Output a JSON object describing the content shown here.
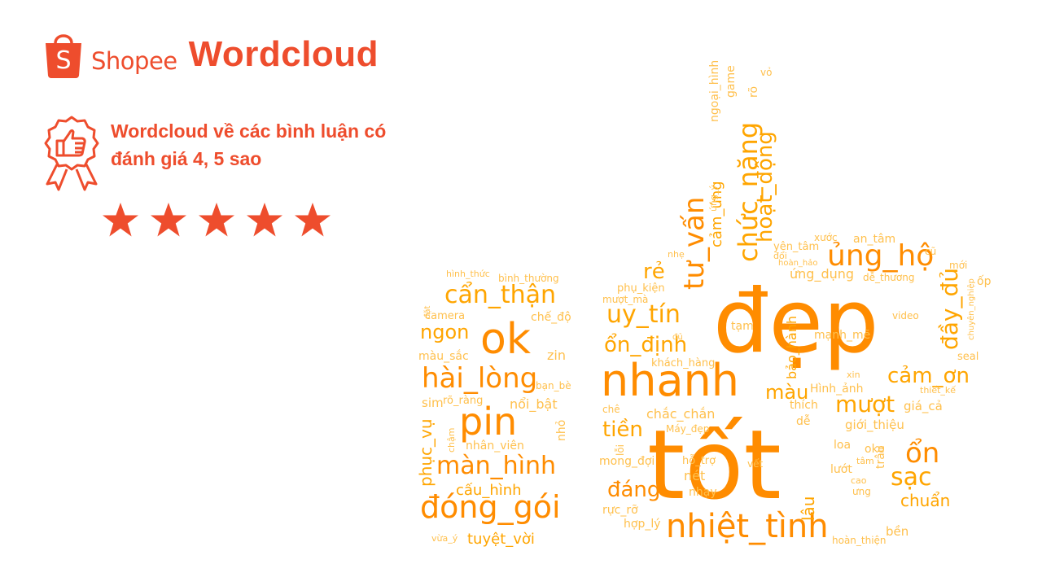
{
  "brand": {
    "shopee": "Shopee",
    "title": "Wordcloud",
    "bag_letter": "S"
  },
  "subtitle": {
    "line1": "Wordcloud về các bình luận có",
    "line2": "đánh giá 4, 5 sao"
  },
  "rating": {
    "stars": 5
  },
  "colors": {
    "brand": "#ee4d2d",
    "word_dark": "#ff8c00",
    "word_mid": "#ffa500",
    "word_light": "#ffc04d"
  },
  "words": [
    {
      "t": "đẹp"
    },
    {
      "t": "tốt"
    },
    {
      "t": "nhanh"
    },
    {
      "t": "ok"
    },
    {
      "t": "pin"
    },
    {
      "t": "nhiệt_tình"
    },
    {
      "t": "đóng_gói"
    },
    {
      "t": "hài_lòng"
    },
    {
      "t": "ủng_hộ"
    },
    {
      "t": "màn_hình"
    },
    {
      "t": "cẩn_thận"
    },
    {
      "t": "chức_năng"
    },
    {
      "t": "uy_tín"
    },
    {
      "t": "ổn_định"
    },
    {
      "t": "tư_vấn"
    },
    {
      "t": "ổn"
    },
    {
      "t": "cảm_ơn"
    },
    {
      "t": "mượt"
    },
    {
      "t": "sạc"
    },
    {
      "t": "tiền"
    },
    {
      "t": "đáng"
    },
    {
      "t": "rẻ"
    },
    {
      "t": "ngon"
    },
    {
      "t": "hoạt_động"
    },
    {
      "t": "đầy_đủ"
    },
    {
      "t": "lâu"
    },
    {
      "t": "màu"
    },
    {
      "t": "tuyệt_vời"
    },
    {
      "t": "cấu_hình"
    },
    {
      "t": "phục_vụ"
    },
    {
      "t": "chuẩn"
    },
    {
      "t": "camera"
    },
    {
      "t": "màu_sắc"
    },
    {
      "t": "zin"
    },
    {
      "t": "chế_độ"
    },
    {
      "t": "rõ_ràng"
    },
    {
      "t": "nổi_bật"
    },
    {
      "t": "sim"
    },
    {
      "t": "nhân_viên"
    },
    {
      "t": "nhỏ"
    },
    {
      "t": "chậm"
    },
    {
      "t": "vừa_ý"
    },
    {
      "t": "hình_thức"
    },
    {
      "t": "bình_thường"
    },
    {
      "t": "đặt"
    },
    {
      "t": "bạn_bè"
    },
    {
      "t": "phụ_kiện"
    },
    {
      "t": "nhẹ"
    },
    {
      "t": "mượt_mà"
    },
    {
      "t": "bảo_hành"
    },
    {
      "t": "tạm"
    },
    {
      "t": "đủ"
    },
    {
      "t": "khách_hàng"
    },
    {
      "t": "chắc_chắn"
    },
    {
      "t": "chê"
    },
    {
      "t": "lỗi"
    },
    {
      "t": "Máy_đẹp"
    },
    {
      "t": "hỗ_trợ"
    },
    {
      "t": "mong_đợi"
    },
    {
      "t": "nét"
    },
    {
      "t": "nhạy"
    },
    {
      "t": "rực_rỡ"
    },
    {
      "t": "hợp_lý"
    },
    {
      "t": "vết"
    },
    {
      "t": "cảm_ứng"
    },
    {
      "t": "ứng_ý"
    },
    {
      "t": "ngoại_hình"
    },
    {
      "t": "game"
    },
    {
      "t": "vỏ"
    },
    {
      "t": "rõ"
    },
    {
      "t": "xước"
    },
    {
      "t": "an_tâm"
    },
    {
      "t": "yên_tâm"
    },
    {
      "t": "đổi"
    },
    {
      "t": "cũ"
    },
    {
      "t": "hoàn_hảo"
    },
    {
      "t": "mới"
    },
    {
      "t": "ứng_dụng"
    },
    {
      "t": "dễ_thương"
    },
    {
      "t": "ốp"
    },
    {
      "t": "chuyên_nghiệp"
    },
    {
      "t": "video"
    },
    {
      "t": "mạnh_mẽ"
    },
    {
      "t": "seal"
    },
    {
      "t": "xin"
    },
    {
      "t": "Hình_ảnh"
    },
    {
      "t": "thiết_kế"
    },
    {
      "t": "thích"
    },
    {
      "t": "giá_cả"
    },
    {
      "t": "dễ"
    },
    {
      "t": "giới_thiệu"
    },
    {
      "t": "loa"
    },
    {
      "t": "oke"
    },
    {
      "t": "trâu"
    },
    {
      "t": "tâm"
    },
    {
      "t": "lướt"
    },
    {
      "t": "cao"
    },
    {
      "t": "ưng"
    },
    {
      "t": "hoàn_thiện"
    },
    {
      "t": "bền"
    }
  ]
}
